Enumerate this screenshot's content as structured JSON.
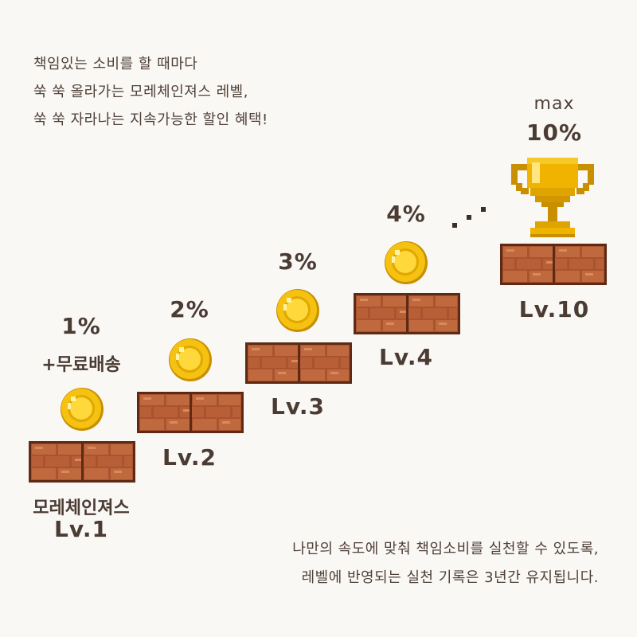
{
  "intro": {
    "line1": "책임있는 소비를 할 때마다",
    "line2": "쑥 쑥 올라가는 모레체인져스 레벨,",
    "line3": "쑥 쑥 자라나는 지속가능한 할인 혜택!"
  },
  "levels": [
    {
      "percent": "1%",
      "extra": "+무료배송",
      "name_top": "모레체인져스",
      "label": "Lv.1",
      "discount_pct": 1
    },
    {
      "percent": "2%",
      "label": "Lv.2",
      "discount_pct": 2
    },
    {
      "percent": "3%",
      "label": "Lv.3",
      "discount_pct": 3
    },
    {
      "percent": "4%",
      "label": "Lv.4",
      "discount_pct": 4
    },
    {
      "percent": "10%",
      "top_note": "max",
      "label": "Lv.10",
      "discount_pct": 10
    }
  ],
  "outro": {
    "line1": "나만의 속도에 맞춰 책임소비를 실천할 수 있도록,",
    "line2": "레벨에 반영되는 실천 기록은 3년간 유지됩니다."
  },
  "icons": [
    "coin-icon",
    "brick-block-icon",
    "trophy-icon",
    "ellipsis-dots-icon"
  ],
  "colors": {
    "background": "#faf8f5",
    "brick": "#b5603a",
    "brick_dark": "#5e2a14",
    "coin": "#f5c211",
    "coin_edge": "#c88f00",
    "trophy": "#f0b400",
    "text": "#4a3b33"
  }
}
